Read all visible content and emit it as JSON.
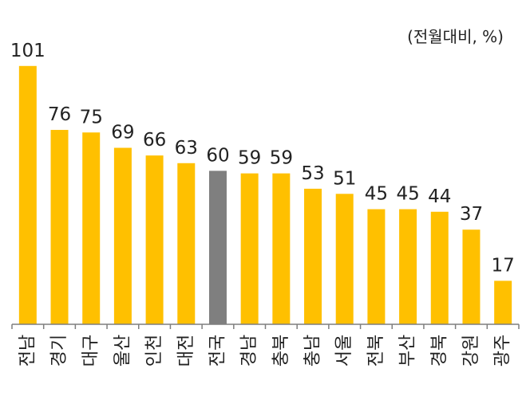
{
  "chart_data": {
    "type": "bar",
    "unit_note": "(전월대비, %)",
    "categories": [
      "전남",
      "경기",
      "대구",
      "울산",
      "인천",
      "대전",
      "전국",
      "경남",
      "충북",
      "충남",
      "서울",
      "전북",
      "부산",
      "경북",
      "강원",
      "광주"
    ],
    "values": [
      101,
      76,
      75,
      69,
      66,
      63,
      60,
      59,
      59,
      53,
      51,
      45,
      45,
      44,
      37,
      17
    ],
    "highlight": "전국",
    "colors": {
      "bar": "#FFC000",
      "highlight": "#7F7F7F",
      "axis": "#7F7F7F"
    },
    "ylim": [
      0,
      110
    ],
    "grid": false,
    "legend": "none"
  }
}
